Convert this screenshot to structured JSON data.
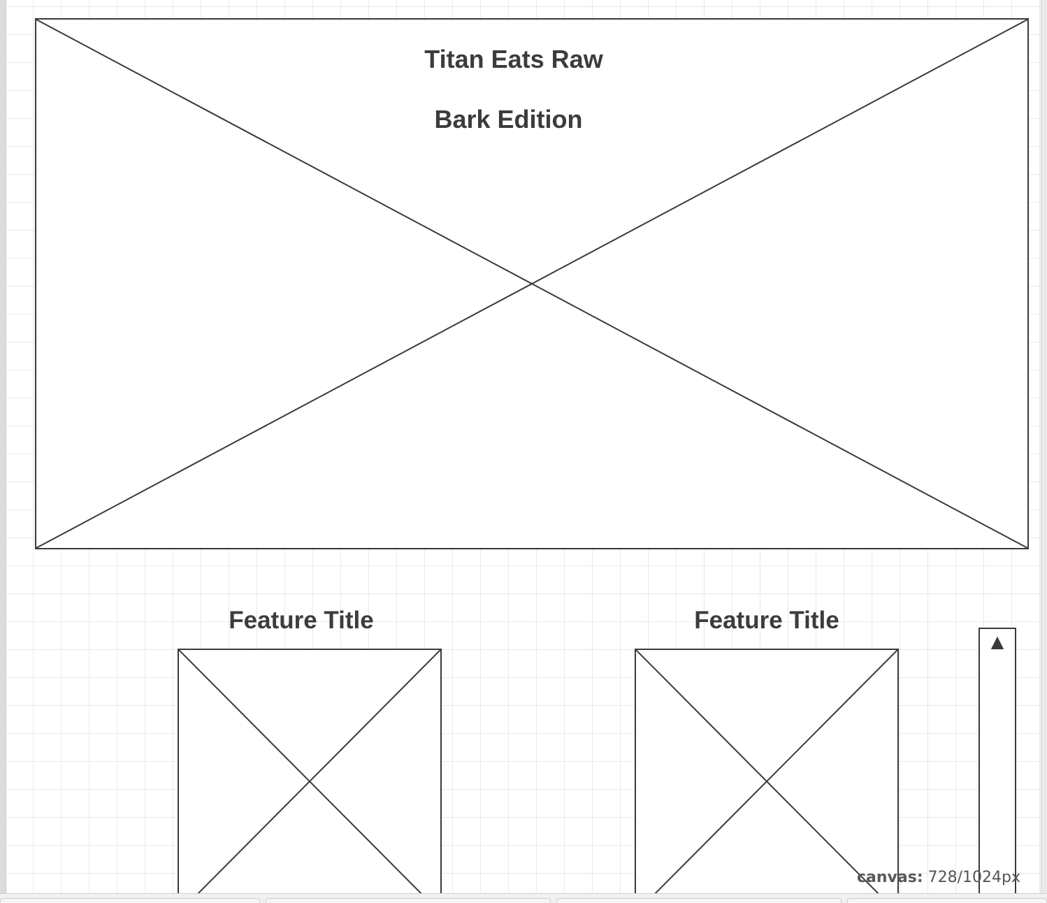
{
  "hero": {
    "title": "Titan Eats Raw",
    "subtitle": "Bark Edition"
  },
  "features": [
    {
      "title": "Feature Title"
    },
    {
      "title": "Feature Title"
    }
  ],
  "scroll_widget": {
    "up_icon": "▲"
  },
  "status": {
    "canvas_label": "canvas:",
    "canvas_size": " 728/1024px"
  },
  "colors": {
    "stroke": "#3a3a3a",
    "grid": "#e9e9e9",
    "text": "#3c3c3c"
  }
}
